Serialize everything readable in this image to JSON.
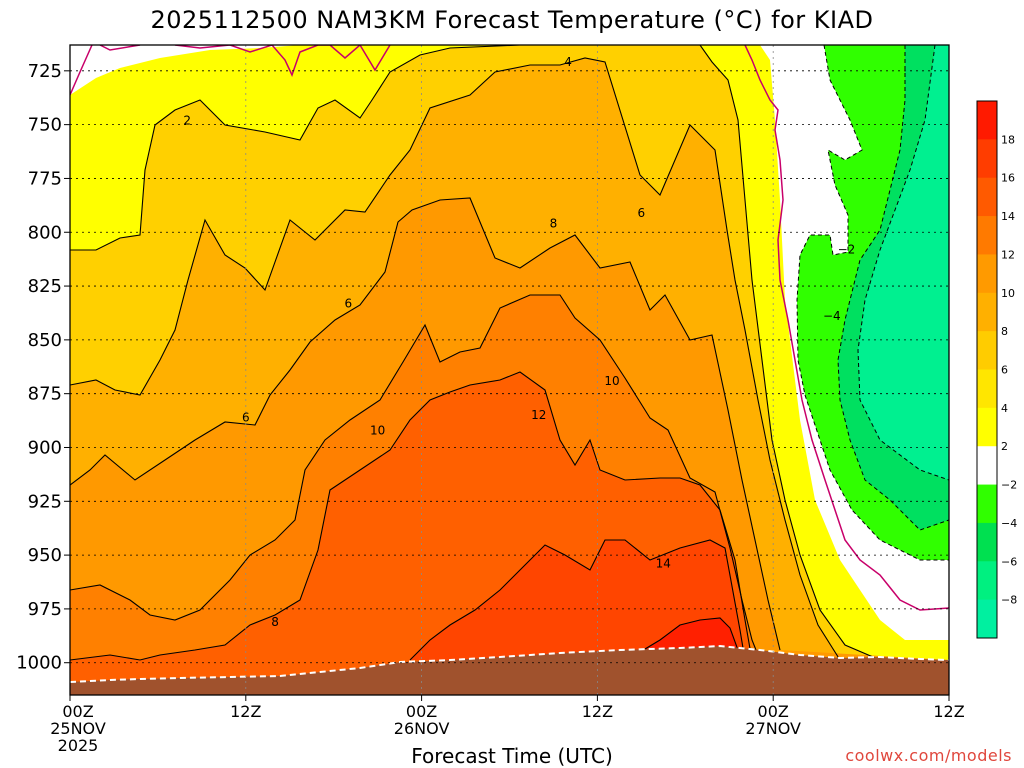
{
  "title": "2025112500 NAM3KM Forecast Temperature (°C) for KIAD",
  "credit": "coolwx.com/models",
  "chart_data": {
    "type": "heatmap",
    "title": "2025112500 NAM3KM Forecast Temperature (°C) for KIAD",
    "xlabel": "Forecast Time (UTC)",
    "ylabel": "",
    "x_range_hours": [
      0,
      60
    ],
    "y_range_hpa": [
      1015,
      713
    ],
    "y_ticks": [
      725,
      750,
      775,
      800,
      825,
      850,
      875,
      900,
      925,
      950,
      975,
      1000
    ],
    "x_ticks": [
      {
        "hour": 0,
        "lines": [
          "00Z",
          "25NOV",
          "2025"
        ]
      },
      {
        "hour": 12,
        "lines": [
          "12Z"
        ]
      },
      {
        "hour": 24,
        "lines": [
          "00Z",
          "26NOV"
        ]
      },
      {
        "hour": 36,
        "lines": [
          "12Z"
        ]
      },
      {
        "hour": 48,
        "lines": [
          "00Z",
          "27NOV"
        ]
      },
      {
        "hour": 60,
        "lines": [
          "12Z"
        ]
      }
    ],
    "grid": true,
    "colorbar_labels": [
      "18",
      "16",
      "14",
      "12",
      "10",
      "8",
      "6",
      "4",
      "2",
      "−2",
      "−4",
      "−6",
      "−8"
    ],
    "contour_labels": [
      {
        "text": "2",
        "hour": 8,
        "p": 748
      },
      {
        "text": "4",
        "hour": 34,
        "p": 721
      },
      {
        "text": "6",
        "hour": 39,
        "p": 791
      },
      {
        "text": "8",
        "hour": 33,
        "p": 796
      },
      {
        "text": "6",
        "hour": 19,
        "p": 833
      },
      {
        "text": "10",
        "hour": 37,
        "p": 869
      },
      {
        "text": "12",
        "hour": 32,
        "p": 885
      },
      {
        "text": "6",
        "hour": 12,
        "p": 886
      },
      {
        "text": "10",
        "hour": 21,
        "p": 892
      },
      {
        "text": "14",
        "hour": 40.5,
        "p": 954
      },
      {
        "text": "8",
        "hour": 14,
        "p": 981
      },
      {
        "text": "−2",
        "hour": 53,
        "p": 808
      },
      {
        "text": "−4",
        "hour": 52,
        "p": 839
      }
    ]
  }
}
